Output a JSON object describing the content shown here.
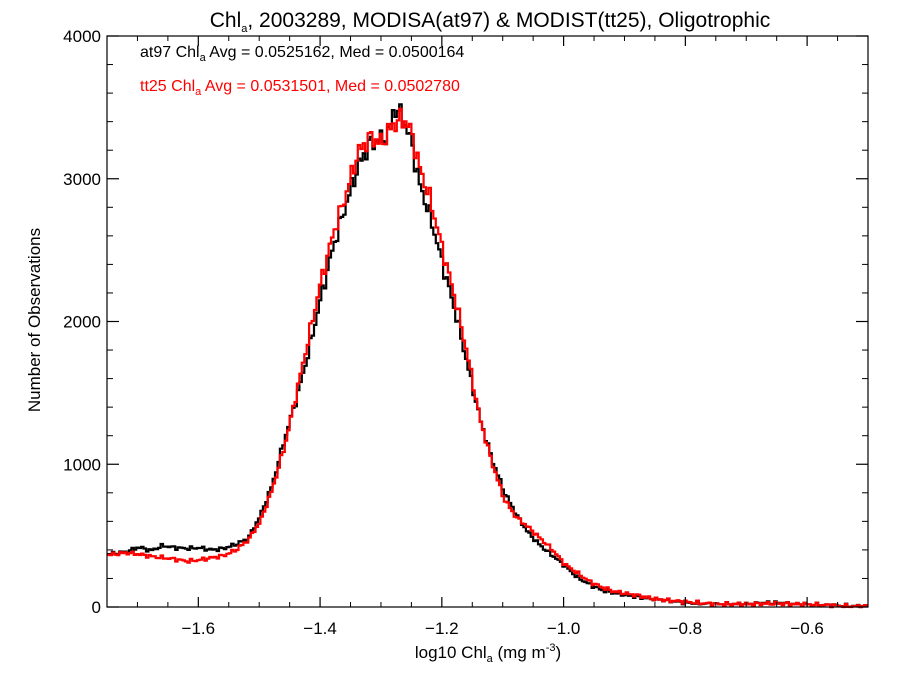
{
  "chart_data": {
    "type": "line",
    "title": {
      "pre": "Chl",
      "sub": "a",
      "post": ", 2003289, MODISA(at97) & MODIST(tt25), Oligotrophic"
    },
    "xlabel": {
      "pre": "log10 Chl",
      "sub": "a",
      "post": " (mg m",
      "sup": "-3",
      "end": ")"
    },
    "ylabel": "Number of Observations",
    "xlim": [
      -1.75,
      -0.5
    ],
    "ylim": [
      0,
      4000
    ],
    "x_ticks": [
      "-1.6",
      "-1.4",
      "-1.2",
      "-1.0",
      "-0.8",
      "-0.6"
    ],
    "y_ticks": [
      "0",
      "1000",
      "2000",
      "3000",
      "4000"
    ],
    "grid": false,
    "series": [
      {
        "name": "at97",
        "color": "#000000",
        "stats": {
          "pre": "at97 Chl",
          "sub": "a",
          "post": " Avg = 0.0525162, Med = 0.0500164"
        },
        "points": [
          [
            -1.75,
            370
          ],
          [
            -1.72,
            385
          ],
          [
            -1.7,
            420
          ],
          [
            -1.68,
            395
          ],
          [
            -1.66,
            430
          ],
          [
            -1.64,
            415
          ],
          [
            -1.62,
            410
          ],
          [
            -1.6,
            415
          ],
          [
            -1.58,
            400
          ],
          [
            -1.56,
            410
          ],
          [
            -1.54,
            440
          ],
          [
            -1.52,
            480
          ],
          [
            -1.5,
            640
          ],
          [
            -1.48,
            860
          ],
          [
            -1.46,
            1180
          ],
          [
            -1.44,
            1470
          ],
          [
            -1.42,
            1800
          ],
          [
            -1.4,
            2180
          ],
          [
            -1.38,
            2530
          ],
          [
            -1.36,
            2810
          ],
          [
            -1.34,
            3080
          ],
          [
            -1.32,
            3250
          ],
          [
            -1.3,
            3280
          ],
          [
            -1.29,
            3310
          ],
          [
            -1.28,
            3500
          ],
          [
            -1.27,
            3450
          ],
          [
            -1.26,
            3360
          ],
          [
            -1.25,
            3220
          ],
          [
            -1.24,
            2980
          ],
          [
            -1.22,
            2720
          ],
          [
            -1.2,
            2390
          ],
          [
            -1.18,
            2070
          ],
          [
            -1.16,
            1700
          ],
          [
            -1.14,
            1330
          ],
          [
            -1.12,
            1040
          ],
          [
            -1.1,
            810
          ],
          [
            -1.08,
            650
          ],
          [
            -1.06,
            520
          ],
          [
            -1.04,
            430
          ],
          [
            -1.02,
            360
          ],
          [
            -1.0,
            290
          ],
          [
            -0.98,
            210
          ],
          [
            -0.96,
            160
          ],
          [
            -0.94,
            120
          ],
          [
            -0.92,
            100
          ],
          [
            -0.9,
            85
          ],
          [
            -0.88,
            70
          ],
          [
            -0.85,
            55
          ],
          [
            -0.8,
            30
          ],
          [
            -0.75,
            20
          ],
          [
            -0.7,
            20
          ],
          [
            -0.66,
            30
          ],
          [
            -0.62,
            20
          ],
          [
            -0.58,
            15
          ],
          [
            -0.55,
            10
          ],
          [
            -0.52,
            5
          ],
          [
            -0.5,
            5
          ]
        ]
      },
      {
        "name": "tt25",
        "color": "#ff0000",
        "stats": {
          "pre": "tt25 Chl",
          "sub": "a",
          "post": " Avg = 0.0531501, Med = 0.0502780"
        },
        "points": [
          [
            -1.75,
            365
          ],
          [
            -1.72,
            380
          ],
          [
            -1.7,
            370
          ],
          [
            -1.68,
            355
          ],
          [
            -1.66,
            345
          ],
          [
            -1.64,
            335
          ],
          [
            -1.62,
            320
          ],
          [
            -1.6,
            330
          ],
          [
            -1.58,
            345
          ],
          [
            -1.56,
            360
          ],
          [
            -1.54,
            400
          ],
          [
            -1.52,
            470
          ],
          [
            -1.5,
            600
          ],
          [
            -1.48,
            830
          ],
          [
            -1.46,
            1130
          ],
          [
            -1.44,
            1510
          ],
          [
            -1.42,
            1900
          ],
          [
            -1.4,
            2290
          ],
          [
            -1.38,
            2620
          ],
          [
            -1.36,
            2880
          ],
          [
            -1.34,
            3180
          ],
          [
            -1.32,
            3290
          ],
          [
            -1.3,
            3250
          ],
          [
            -1.29,
            3330
          ],
          [
            -1.28,
            3380
          ],
          [
            -1.27,
            3420
          ],
          [
            -1.26,
            3400
          ],
          [
            -1.25,
            3300
          ],
          [
            -1.24,
            3100
          ],
          [
            -1.22,
            2840
          ],
          [
            -1.2,
            2490
          ],
          [
            -1.18,
            2160
          ],
          [
            -1.16,
            1770
          ],
          [
            -1.14,
            1330
          ],
          [
            -1.12,
            1020
          ],
          [
            -1.1,
            760
          ],
          [
            -1.08,
            630
          ],
          [
            -1.06,
            560
          ],
          [
            -1.04,
            480
          ],
          [
            -1.02,
            400
          ],
          [
            -1.0,
            300
          ],
          [
            -0.98,
            240
          ],
          [
            -0.96,
            180
          ],
          [
            -0.94,
            140
          ],
          [
            -0.92,
            110
          ],
          [
            -0.9,
            95
          ],
          [
            -0.88,
            80
          ],
          [
            -0.85,
            55
          ],
          [
            -0.8,
            35
          ],
          [
            -0.75,
            20
          ],
          [
            -0.7,
            20
          ],
          [
            -0.66,
            25
          ],
          [
            -0.62,
            20
          ],
          [
            -0.58,
            15
          ],
          [
            -0.55,
            8
          ],
          [
            -0.52,
            4
          ],
          [
            -0.5,
            5
          ]
        ]
      }
    ]
  }
}
